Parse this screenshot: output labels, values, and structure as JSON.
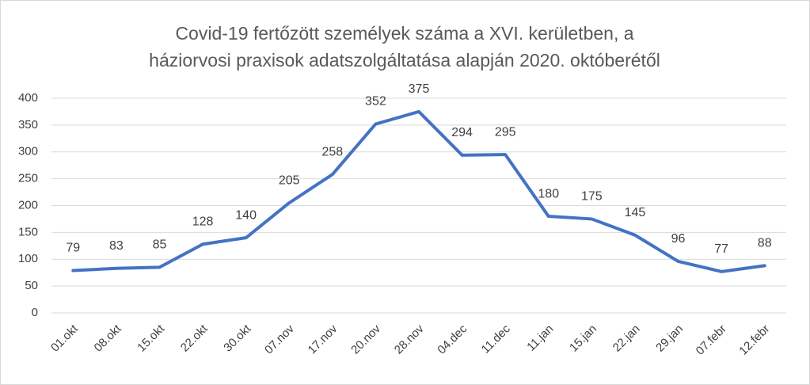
{
  "chart_data": {
    "type": "line",
    "title": [
      "Covid-19 fertőzött személyek száma a XVI. kerületben, a",
      "háziorvosi praxisok adatszolgáltatása alapján 2020. októberétől"
    ],
    "categories": [
      "01.okt",
      "08.okt",
      "15.okt",
      "22.okt",
      "30.okt",
      "07.nov",
      "17.nov",
      "20.nov",
      "28.nov",
      "04.dec",
      "11.dec",
      "11.jan",
      "15.jan",
      "22.jan",
      "29.jan",
      "07.febr",
      "12.febr"
    ],
    "values": [
      79,
      83,
      85,
      128,
      140,
      205,
      258,
      352,
      375,
      294,
      295,
      180,
      175,
      145,
      96,
      77,
      88
    ],
    "color": "#4472c4",
    "ylim": [
      0,
      400
    ],
    "yticks": [
      0,
      50,
      100,
      150,
      200,
      250,
      300,
      350,
      400
    ],
    "grid": true
  }
}
